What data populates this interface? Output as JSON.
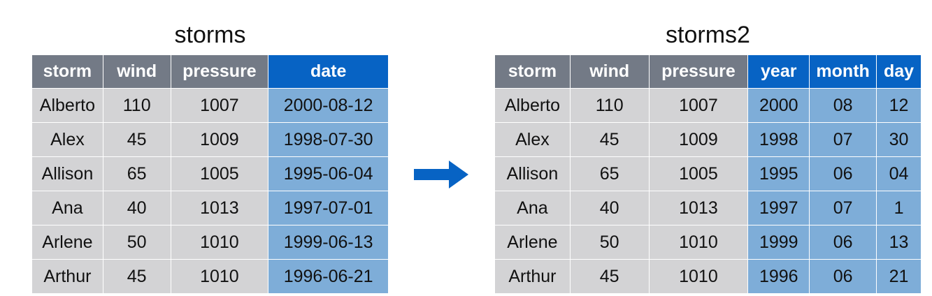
{
  "left_table": {
    "title": "storms",
    "columns": [
      "storm",
      "wind",
      "pressure",
      "date"
    ],
    "rows": [
      [
        "Alberto",
        "110",
        "1007",
        "2000-08-12"
      ],
      [
        "Alex",
        "45",
        "1009",
        "1998-07-30"
      ],
      [
        "Allison",
        "65",
        "1005",
        "1995-06-04"
      ],
      [
        "Ana",
        "40",
        "1013",
        "1997-07-01"
      ],
      [
        "Arlene",
        "50",
        "1010",
        "1999-06-13"
      ],
      [
        "Arthur",
        "45",
        "1010",
        "1996-06-21"
      ]
    ]
  },
  "right_table": {
    "title": "storms2",
    "columns": [
      "storm",
      "wind",
      "pressure",
      "year",
      "month",
      "day"
    ],
    "rows": [
      [
        "Alberto",
        "110",
        "1007",
        "2000",
        "08",
        "12"
      ],
      [
        "Alex",
        "45",
        "1009",
        "1998",
        "07",
        "30"
      ],
      [
        "Allison",
        "65",
        "1005",
        "1995",
        "06",
        "04"
      ],
      [
        "Ana",
        "40",
        "1013",
        "1997",
        "07",
        "1"
      ],
      [
        "Arlene",
        "50",
        "1010",
        "1999",
        "06",
        "13"
      ],
      [
        "Arthur",
        "45",
        "1010",
        "1996",
        "06",
        "21"
      ]
    ]
  },
  "colors": {
    "header_gray": "#737a86",
    "header_highlight": "#0763c4",
    "cell_gray": "#d3d3d5",
    "cell_highlight": "#7eadd8",
    "arrow": "#0763c4"
  },
  "icons": {
    "arrow": "arrow-right-icon"
  }
}
